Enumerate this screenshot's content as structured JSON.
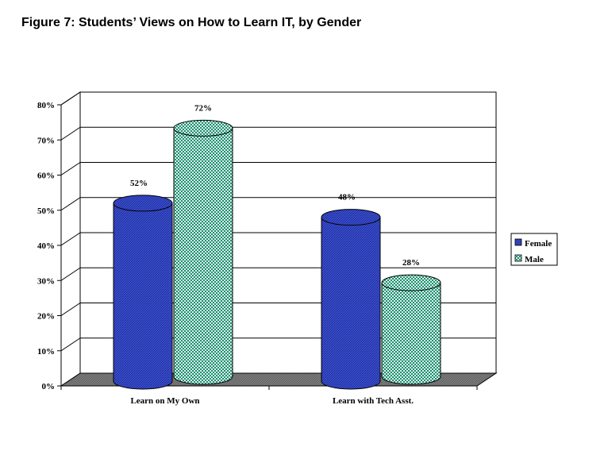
{
  "chart_data": {
    "type": "bar",
    "title": "Figure 7: Students’ Views on How to Learn IT, by Gender",
    "categories": [
      "Learn on My Own",
      "Learn with Tech Asst."
    ],
    "series": [
      {
        "name": "Female",
        "values": [
          52,
          48
        ],
        "labels": [
          "52%",
          "48%"
        ],
        "color": "#3b4fd0"
      },
      {
        "name": "Male",
        "values": [
          72,
          28
        ],
        "labels": [
          "72%",
          "28%"
        ],
        "color": "#2aa886"
      }
    ],
    "y_ticks": [
      "0%",
      "10%",
      "20%",
      "30%",
      "40%",
      "50%",
      "60%",
      "70%",
      "80%"
    ],
    "ylim": [
      0,
      80
    ],
    "grid": true,
    "legend": "right",
    "style": "3d-cylinder"
  }
}
